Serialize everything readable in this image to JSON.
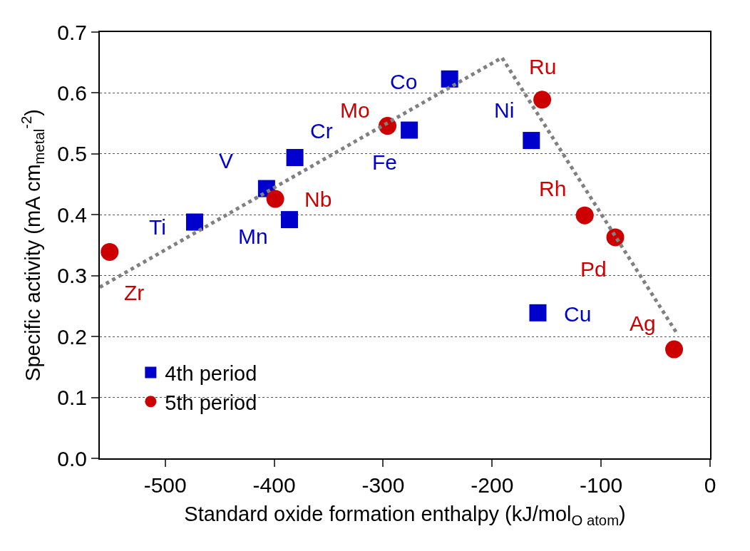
{
  "chart_data": {
    "type": "scatter",
    "xlabel": "Standard oxide formation enthalpy (kJ/mol$_{O atom}$)",
    "ylabel": "Specific activity (mA cm$_{metal}$$^{-2}$)",
    "xlim": [
      -560,
      0
    ],
    "xticks": [
      -500,
      -400,
      -300,
      -200,
      -100,
      0
    ],
    "ylim": [
      0,
      0.7
    ],
    "yticks": [
      "0.0",
      0.1,
      0.2,
      0.3,
      0.4,
      0.5,
      0.6,
      0.7
    ],
    "grid": "y",
    "legend": "bottom left",
    "series": [
      {
        "name": "4th period",
        "color": "#0000cc",
        "marker": "square",
        "x": [
          -473,
          -407,
          -381,
          -386,
          -276,
          -239,
          -164,
          -158
        ],
        "values": [
          0.388,
          0.443,
          0.494,
          0.392,
          0.539,
          0.623,
          0.522,
          0.239
        ]
      },
      {
        "name": "5th period",
        "color": "#cc0000",
        "marker": "circle",
        "x": [
          -551,
          -399,
          -296,
          -154,
          -115,
          -87,
          -33
        ],
        "values": [
          0.339,
          0.426,
          0.546,
          0.589,
          0.399,
          0.363,
          0.179
        ]
      },
      {
        "type": "line",
        "color": "#808080",
        "line_style": "dotted",
        "marker": "none",
        "x": [
          -560,
          -191,
          -30
        ],
        "values": [
          0.281,
          0.658,
          0.204
        ]
      }
    ],
    "annotations": [
      {
        "text": "Ti",
        "x": -473,
        "y": 0.388
      },
      {
        "text": "V",
        "x": -407,
        "y": 0.443
      },
      {
        "text": "Cr",
        "x": -381,
        "y": 0.494
      },
      {
        "text": "Mn",
        "x": -386,
        "y": 0.392
      },
      {
        "text": "Fe",
        "x": -276,
        "y": 0.539
      },
      {
        "text": "Co",
        "x": -239,
        "y": 0.623
      },
      {
        "text": "Ni",
        "x": -164,
        "y": 0.522
      },
      {
        "text": "Cu",
        "x": -158,
        "y": 0.239
      },
      {
        "text": "Zr",
        "x": -551,
        "y": 0.339
      },
      {
        "text": "Nb",
        "x": -399,
        "y": 0.426
      },
      {
        "text": "Mo",
        "x": -296,
        "y": 0.546
      },
      {
        "text": "Ru",
        "x": -154,
        "y": 0.589
      },
      {
        "text": "Rh",
        "x": -115,
        "y": 0.399
      },
      {
        "text": "Pd",
        "x": -87,
        "y": 0.363
      },
      {
        "text": "Ag",
        "x": -33,
        "y": 0.179
      }
    ]
  }
}
